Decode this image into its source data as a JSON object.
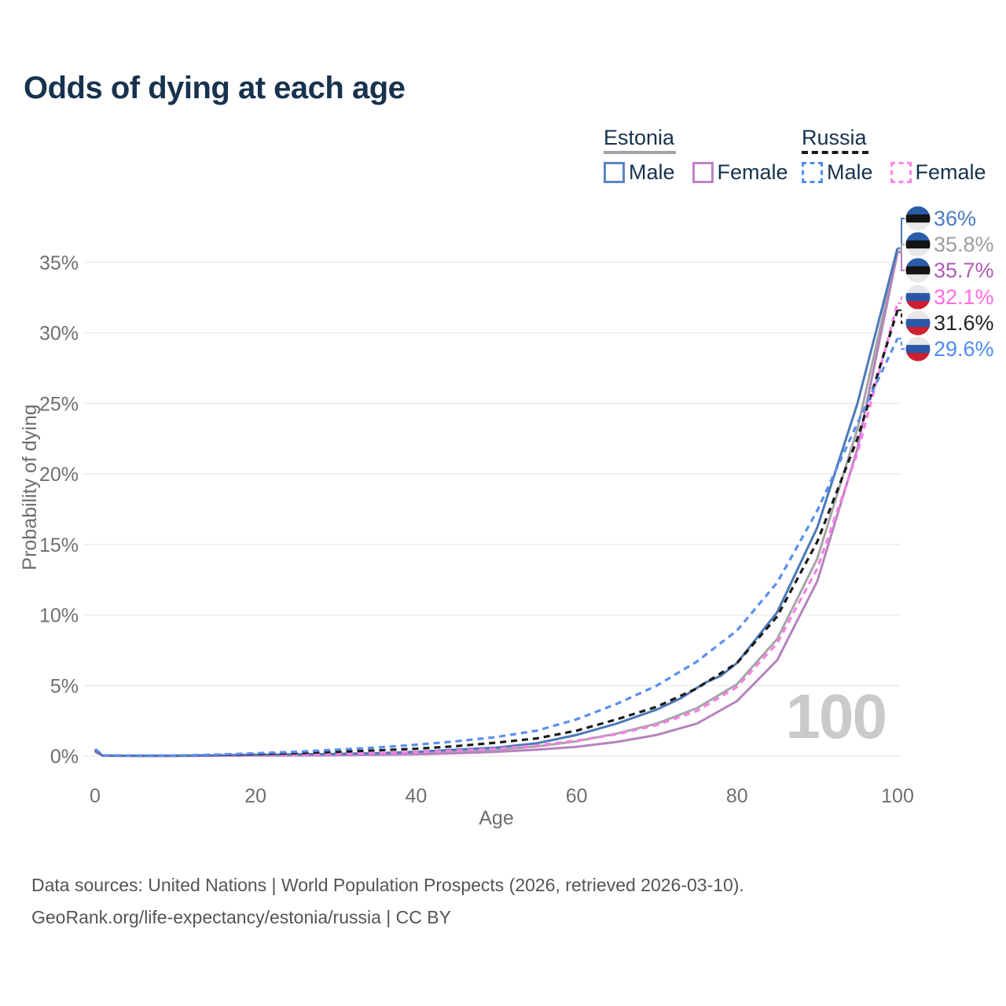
{
  "title": "Odds of dying at each age",
  "watermark": "100",
  "footer": {
    "line1": "Data sources: United Nations | World Population Prospects (2026, retrieved 2026-03-10).",
    "line2": "GeoRank.org/life-expectancy/estonia/russia | CC BY"
  },
  "colors": {
    "title_text": "#17324e",
    "axis_text": "#6f6f6f",
    "gridline": "#ececec",
    "watermark": "#cacaca",
    "footer_text": "#545454"
  },
  "flags": {
    "estonia": [
      "#2b5ca8",
      "#141414",
      "#e8e8e8"
    ],
    "russia": [
      "#e8e8e8",
      "#2c57a8",
      "#d0202e"
    ]
  },
  "legend": {
    "groups": [
      {
        "name": "Estonia",
        "line_style": "solid",
        "underline_color": "#a3a3a3",
        "items": [
          {
            "label": "Male",
            "color": "#5b86c6",
            "dash": false
          },
          {
            "label": "Female",
            "color": "#c083c8",
            "dash": false
          }
        ]
      },
      {
        "name": "Russia",
        "line_style": "dashed",
        "underline_color": "#1a1a1a",
        "items": [
          {
            "label": "Male",
            "color": "#4d8ef7",
            "dash": true
          },
          {
            "label": "Female",
            "color": "#ff85e8",
            "dash": true
          }
        ]
      }
    ]
  },
  "chart_data": {
    "type": "line",
    "title": "Odds of dying at each age",
    "xlabel": "Age",
    "ylabel": "Probability of dying",
    "xlim": [
      0,
      100
    ],
    "ylim": [
      0,
      37.5
    ],
    "x_ticks": [
      0,
      20,
      40,
      60,
      80,
      100
    ],
    "y_ticks": [
      "0%",
      "5%",
      "10%",
      "15%",
      "20%",
      "25%",
      "30%",
      "35%"
    ],
    "y_tick_step_pct": 5,
    "grid": "horizontal",
    "units": "percent probability of dying at each age",
    "series": [
      {
        "id": "estonia",
        "label": "Estonia",
        "color": "#a5a5a5",
        "dash": false,
        "x": [
          0,
          1,
          5,
          10,
          15,
          20,
          25,
          30,
          35,
          40,
          45,
          50,
          55,
          60,
          65,
          70,
          75,
          80,
          85,
          90,
          95,
          100
        ],
        "y": [
          0.32,
          0.03,
          0.02,
          0.02,
          0.04,
          0.07,
          0.09,
          0.11,
          0.15,
          0.21,
          0.32,
          0.45,
          0.68,
          1.05,
          1.6,
          2.3,
          3.4,
          5.1,
          8.3,
          14.0,
          23.2,
          35.8
        ]
      },
      {
        "id": "estonia-female",
        "label": "Estonia Female",
        "color": "#b583bd",
        "dash": false,
        "x": [
          0,
          1,
          5,
          10,
          15,
          20,
          25,
          30,
          35,
          40,
          45,
          50,
          55,
          60,
          65,
          70,
          75,
          80,
          85,
          90,
          95,
          100
        ],
        "y": [
          0.3,
          0.02,
          0.01,
          0.01,
          0.03,
          0.04,
          0.05,
          0.06,
          0.09,
          0.13,
          0.2,
          0.3,
          0.45,
          0.65,
          1.0,
          1.5,
          2.3,
          3.9,
          6.8,
          12.4,
          21.8,
          35.7
        ]
      },
      {
        "id": "estonia-male",
        "label": "Estonia Male",
        "color": "#4b79b7",
        "dash": false,
        "x": [
          0,
          1,
          5,
          10,
          15,
          20,
          25,
          30,
          35,
          40,
          45,
          50,
          55,
          60,
          65,
          70,
          73,
          76,
          78,
          80,
          85,
          90,
          95,
          100
        ],
        "y": [
          0.35,
          0.03,
          0.02,
          0.02,
          0.05,
          0.1,
          0.12,
          0.15,
          0.2,
          0.3,
          0.45,
          0.6,
          0.9,
          1.5,
          2.3,
          3.3,
          4.1,
          5.2,
          5.7,
          6.6,
          10.2,
          16.2,
          25.0,
          36.0
        ]
      },
      {
        "id": "russia-female",
        "label": "Russia Female",
        "color": "#f97fe6",
        "dash": true,
        "x": [
          0,
          1,
          5,
          10,
          15,
          20,
          25,
          30,
          35,
          40,
          45,
          50,
          55,
          60,
          65,
          70,
          75,
          80,
          85,
          90,
          95,
          100
        ],
        "y": [
          0.4,
          0.03,
          0.02,
          0.02,
          0.05,
          0.07,
          0.1,
          0.15,
          0.2,
          0.28,
          0.38,
          0.52,
          0.75,
          1.1,
          1.55,
          2.2,
          3.2,
          4.9,
          8.0,
          13.3,
          21.5,
          32.1
        ]
      },
      {
        "id": "russia",
        "label": "Russia",
        "color": "#1b1b1b",
        "dash": true,
        "x": [
          0,
          1,
          5,
          10,
          15,
          20,
          25,
          30,
          35,
          40,
          45,
          50,
          55,
          60,
          65,
          70,
          75,
          80,
          85,
          90,
          95,
          100
        ],
        "y": [
          0.45,
          0.04,
          0.03,
          0.03,
          0.08,
          0.13,
          0.2,
          0.3,
          0.4,
          0.52,
          0.7,
          0.95,
          1.25,
          1.8,
          2.6,
          3.5,
          4.8,
          6.6,
          9.9,
          15.2,
          22.5,
          31.6
        ]
      },
      {
        "id": "russia-male",
        "label": "Russia Male",
        "color": "#5a8ff0",
        "dash": true,
        "x": [
          0,
          1,
          5,
          10,
          15,
          20,
          25,
          30,
          35,
          40,
          45,
          50,
          55,
          60,
          65,
          70,
          75,
          80,
          85,
          90,
          95,
          100
        ],
        "y": [
          0.5,
          0.04,
          0.03,
          0.03,
          0.1,
          0.2,
          0.3,
          0.45,
          0.6,
          0.8,
          1.05,
          1.35,
          1.8,
          2.6,
          3.7,
          5.0,
          6.7,
          8.9,
          12.3,
          17.4,
          23.6,
          29.6
        ]
      }
    ],
    "end_labels": [
      {
        "series": "estonia-male",
        "flag": "estonia",
        "value": "36%",
        "text_color": "#4a7bc2"
      },
      {
        "series": "estonia",
        "flag": "estonia",
        "value": "35.8%",
        "text_color": "#9d9d9d"
      },
      {
        "series": "estonia-female",
        "flag": "estonia",
        "value": "35.7%",
        "text_color": "#b25ab5"
      },
      {
        "series": "russia-female",
        "flag": "russia",
        "value": "32.1%",
        "text_color": "#ff6ce0"
      },
      {
        "series": "russia",
        "flag": "russia",
        "value": "31.6%",
        "text_color": "#222222"
      },
      {
        "series": "russia-male",
        "flag": "russia",
        "value": "29.6%",
        "text_color": "#4b8af2"
      }
    ]
  }
}
